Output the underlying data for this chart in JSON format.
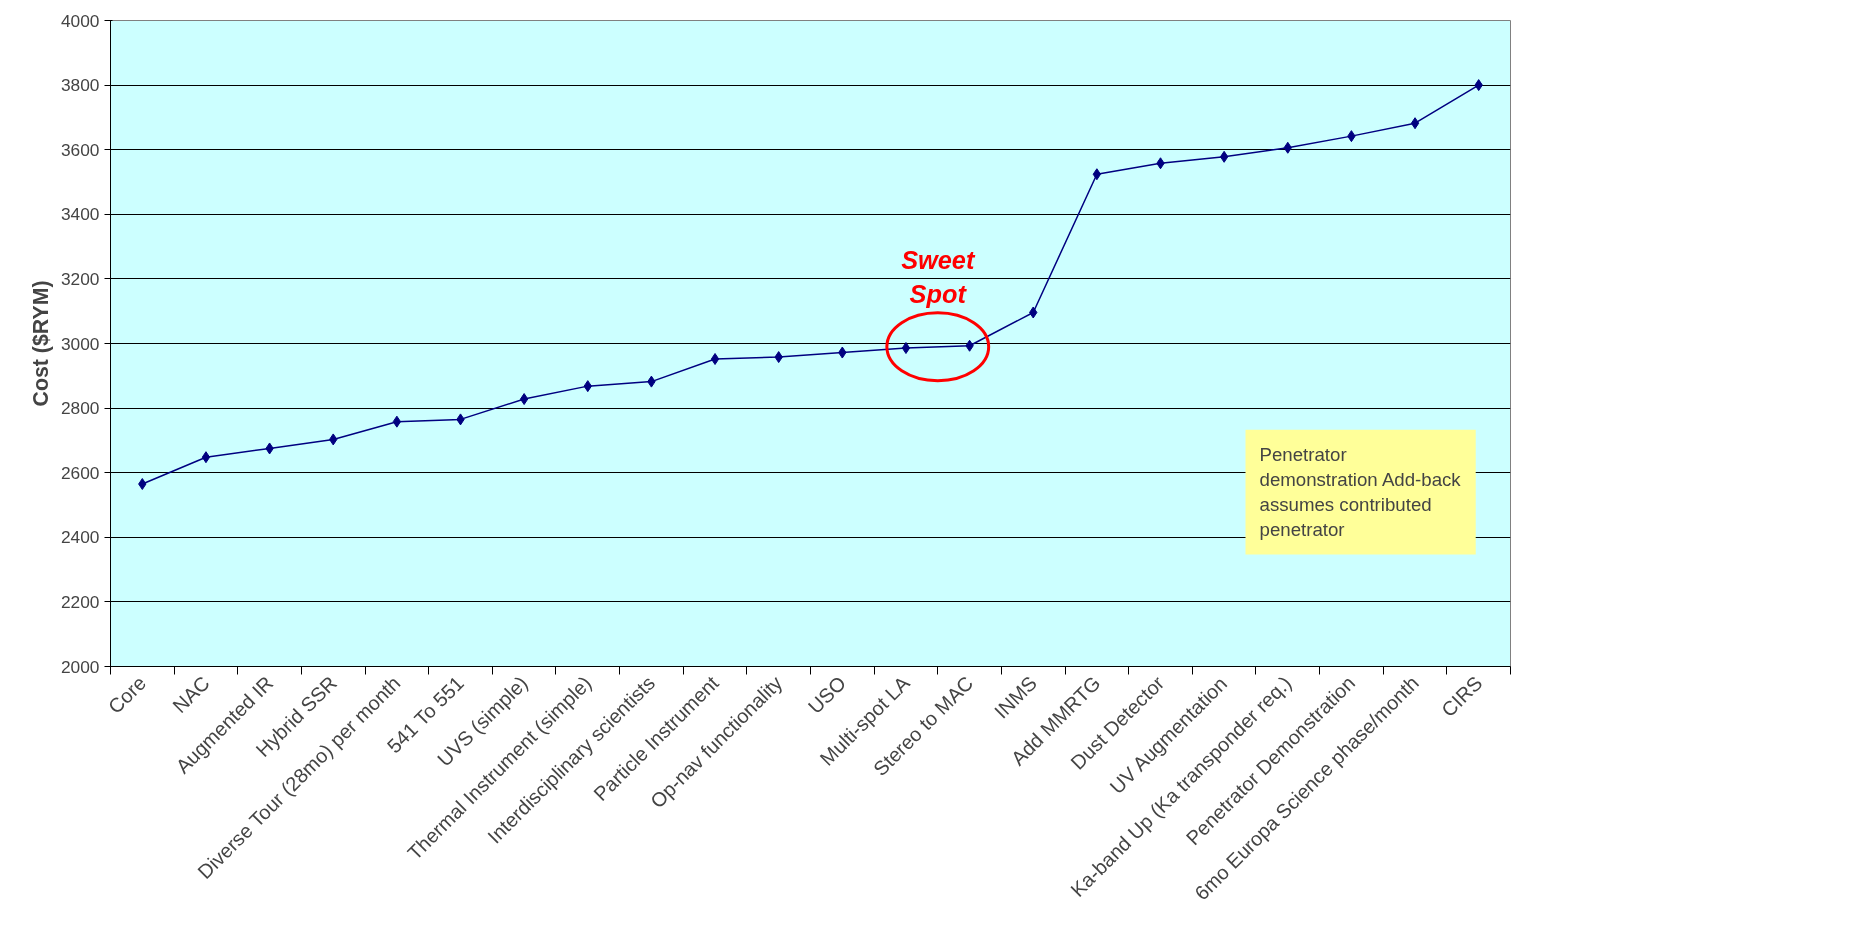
{
  "chart_data": {
    "type": "line",
    "ylabel": "Cost ($RYM)",
    "categories": [
      "Core",
      "NAC",
      "Augmented IR",
      "Hybrid SSR",
      "Diverse Tour (28mo) per month",
      "541 To 551",
      "UVS (simple)",
      "Thermal Instrument (simple)",
      "Interdisciplinary scientists",
      "Particle Instrument",
      "Op-nav functionality",
      "USO",
      "Multi-spot LA",
      "Stereo to MAC",
      "INMS",
      "Add MMRTG",
      "Dust Detector",
      "UV Augmentation",
      "Ka-band Up (Ka transponder req.)",
      "Penetrator Demonstration",
      "6mo Europa Science phase/month",
      "CIRS"
    ],
    "series": [
      {
        "color": "#000080",
        "values": [
          2565,
          2648,
          2675,
          2703,
          2758,
          2765,
          2828,
          2868,
          2882,
          2952,
          2958,
          2972,
          2986,
          2993,
          3096,
          3524,
          3558,
          3578,
          3606,
          3642,
          3682,
          3800
        ]
      }
    ],
    "ylim": [
      2000,
      4000
    ],
    "yticks": [
      2000,
      2200,
      2400,
      2600,
      2800,
      3000,
      3200,
      3400,
      3600,
      3800,
      4000
    ],
    "grid": "y",
    "marker": "diamond",
    "line_style": "solid",
    "annotations": [
      "Sweet Spot",
      "Penetrator demonstration Add-back assumes contributed penetrator"
    ]
  }
}
